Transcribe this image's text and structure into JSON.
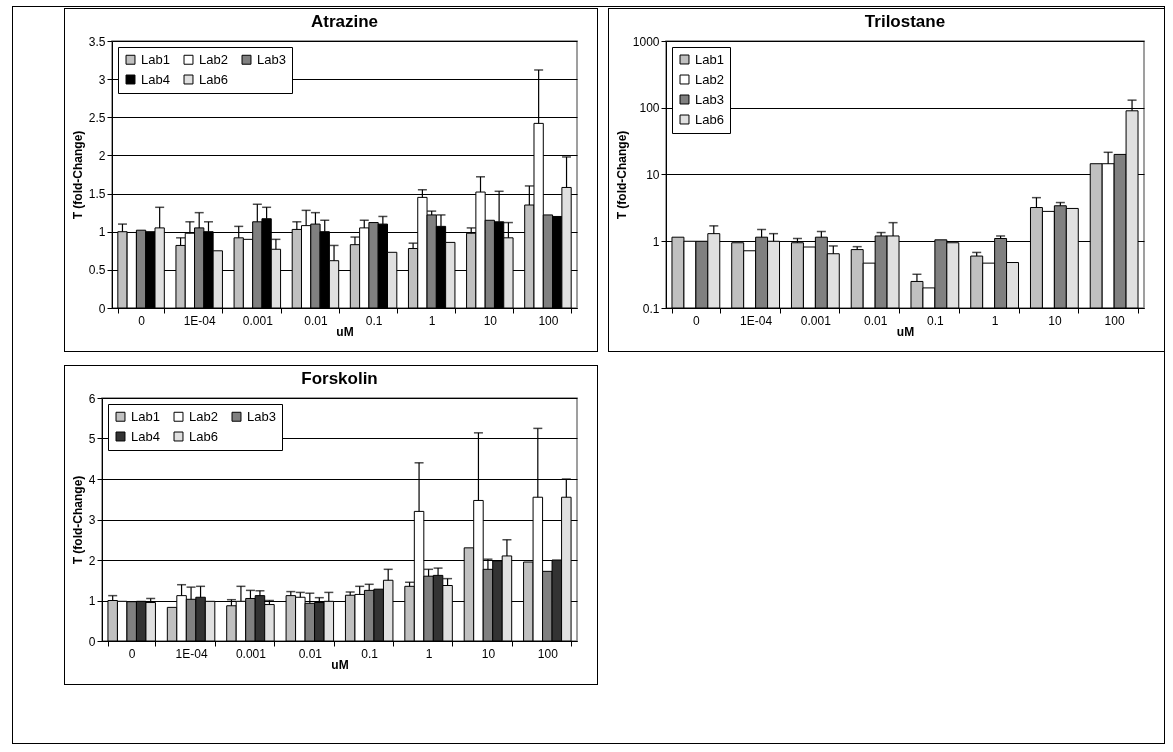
{
  "chart_data": [
    {
      "type": "bar",
      "title": "Atrazine",
      "xlabel": "uM",
      "ylabel": "T (fold-Change)",
      "categories": [
        "0",
        "1E-04",
        "0.001",
        "0.01",
        "0.1",
        "1",
        "10",
        "100"
      ],
      "ylim": [
        0,
        3.5
      ],
      "yticks": [
        0,
        0.5,
        1,
        1.5,
        2,
        2.5,
        3,
        3.5
      ],
      "grid": "y",
      "legend": "top left",
      "series": [
        {
          "name": "Lab1",
          "color": "#c0c0c0",
          "values": [
            1.0,
            0.82,
            0.92,
            1.03,
            0.83,
            0.78,
            0.98,
            1.35
          ],
          "errors": [
            0.1,
            0.1,
            0.15,
            0.1,
            0.1,
            0.07,
            0.07,
            0.25
          ]
        },
        {
          "name": "Lab2",
          "color": "#ffffff",
          "values": [
            0.99,
            0.98,
            0.9,
            1.08,
            1.05,
            1.45,
            1.52,
            2.42
          ],
          "errors": [
            null,
            0.15,
            null,
            0.2,
            0.1,
            0.1,
            0.2,
            0.7
          ]
        },
        {
          "name": "Lab3",
          "color": "#808080",
          "values": [
            1.02,
            1.05,
            1.13,
            1.1,
            1.12,
            1.22,
            1.15,
            1.22
          ],
          "errors": [
            null,
            0.2,
            0.23,
            0.15,
            null,
            0.05,
            null,
            null
          ]
        },
        {
          "name": "Lab4",
          "color": "#000000",
          "values": [
            1.0,
            1.0,
            1.17,
            1.0,
            1.1,
            1.07,
            1.13,
            1.2
          ],
          "errors": [
            null,
            0.13,
            0.15,
            0.15,
            0.1,
            0.15,
            0.4,
            null
          ]
        },
        {
          "name": "Lab6",
          "color": "#e0e0e0",
          "values": [
            1.05,
            0.75,
            0.77,
            0.62,
            0.73,
            0.86,
            0.92,
            1.58
          ],
          "errors": [
            0.27,
            null,
            0.13,
            0.2,
            null,
            null,
            0.2,
            0.4
          ]
        }
      ]
    },
    {
      "type": "bar",
      "title": "Trilostane",
      "xlabel": "uM",
      "ylabel": "T (fold-Change)",
      "categories": [
        "0",
        "1E-04",
        "0.001",
        "0.01",
        "0.1",
        "1",
        "10",
        "100"
      ],
      "log": "y",
      "ylim": [
        0.1,
        1000
      ],
      "yticks": [
        0.1,
        1,
        10,
        100,
        1000
      ],
      "grid": "y",
      "legend": "top left",
      "series": [
        {
          "name": "Lab1",
          "color": "#c0c0c0",
          "values": [
            1.15,
            0.95,
            0.95,
            0.75,
            0.25,
            0.6,
            3.2,
            14.5
          ],
          "errors": [
            null,
            null,
            0.15,
            0.08,
            0.07,
            0.08,
            1.3,
            null
          ]
        },
        {
          "name": "Lab2",
          "color": "#ffffff",
          "values": [
            1.0,
            0.72,
            0.82,
            0.47,
            0.2,
            0.47,
            2.8,
            14.5
          ],
          "errors": [
            null,
            null,
            null,
            null,
            null,
            null,
            null,
            7
          ]
        },
        {
          "name": "Lab3",
          "color": "#808080",
          "values": [
            1.0,
            1.15,
            1.15,
            1.2,
            1.05,
            1.1,
            3.4,
            20
          ],
          "errors": [
            null,
            0.35,
            0.25,
            0.15,
            null,
            0.1,
            0.4,
            null
          ]
        },
        {
          "name": "Lab6",
          "color": "#e0e0e0",
          "values": [
            1.3,
            1.0,
            0.65,
            1.2,
            0.95,
            0.48,
            3.1,
            90
          ],
          "errors": [
            0.4,
            0.3,
            0.2,
            0.7,
            null,
            null,
            null,
            40
          ]
        }
      ]
    },
    {
      "type": "bar",
      "title": "Forskolin",
      "xlabel": "uM",
      "ylabel": "T (fold-Change)",
      "categories": [
        "0",
        "1E-04",
        "0.001",
        "0.01",
        "0.1",
        "1",
        "10",
        "100"
      ],
      "ylim": [
        0,
        6
      ],
      "yticks": [
        0,
        1,
        2,
        3,
        4,
        5,
        6
      ],
      "grid": "y",
      "legend": "top left",
      "series": [
        {
          "name": "Lab1",
          "color": "#c0c0c0",
          "values": [
            1.0,
            0.83,
            0.87,
            1.12,
            1.13,
            1.35,
            2.3,
            1.95
          ],
          "errors": [
            0.12,
            null,
            0.15,
            0.1,
            0.08,
            0.1,
            null,
            null
          ]
        },
        {
          "name": "Lab2",
          "color": "#ffffff",
          "values": [
            0.98,
            1.12,
            0.98,
            1.08,
            1.15,
            3.2,
            3.47,
            3.55
          ],
          "errors": [
            null,
            0.27,
            0.37,
            0.12,
            0.2,
            1.2,
            1.67,
            1.7
          ]
        },
        {
          "name": "Lab3",
          "color": "#808080",
          "values": [
            0.97,
            1.03,
            1.05,
            0.93,
            1.25,
            1.6,
            1.77,
            1.72
          ],
          "errors": [
            null,
            0.3,
            0.2,
            0.25,
            0.15,
            0.17,
            0.25,
            null
          ]
        },
        {
          "name": "Lab4",
          "color": "#333333",
          "values": [
            0.98,
            1.08,
            1.12,
            0.95,
            1.28,
            1.62,
            1.98,
            2.0
          ],
          "errors": [
            null,
            0.27,
            0.12,
            0.12,
            null,
            0.18,
            null,
            null
          ]
        },
        {
          "name": "Lab6",
          "color": "#e0e0e0",
          "values": [
            0.95,
            0.98,
            0.9,
            0.98,
            1.5,
            1.37,
            2.1,
            3.55
          ],
          "errors": [
            0.1,
            null,
            0.1,
            0.22,
            0.27,
            0.17,
            0.4,
            0.45
          ]
        }
      ]
    }
  ]
}
